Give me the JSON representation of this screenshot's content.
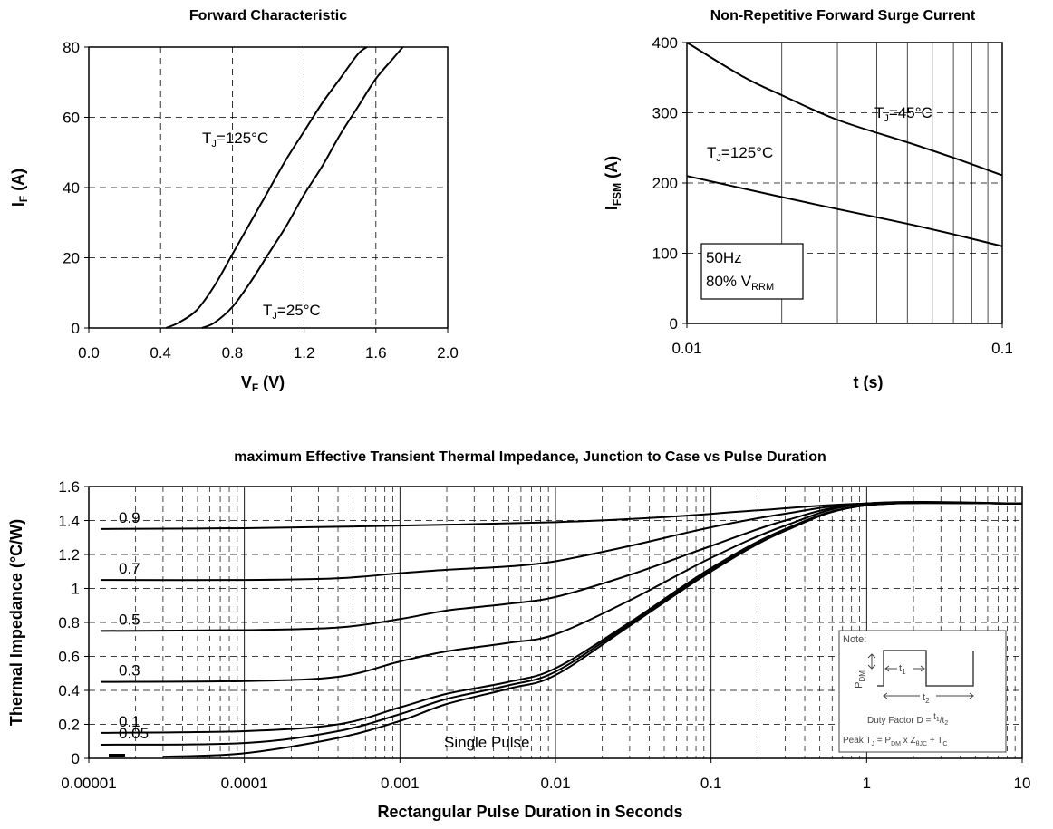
{
  "chart_data": [
    {
      "type": "line",
      "title": "Forward Characteristic",
      "xlabel": "V",
      "xlabel_sub": "F",
      "xlabel_unit": " (V)",
      "ylabel": "I",
      "ylabel_sub": "F",
      "ylabel_unit": " (A)",
      "xlim": [
        0,
        2.0
      ],
      "ylim": [
        0,
        80
      ],
      "xticks": [
        0,
        0.4,
        0.8,
        1.2,
        1.6,
        2.0
      ],
      "xtick_labels": [
        "0.0",
        "0.4",
        "0.8",
        "1.2",
        "1.6",
        "2.0"
      ],
      "yticks": [
        0,
        20,
        40,
        60,
        80
      ],
      "ytick_labels": [
        "0",
        "20",
        "40",
        "60",
        "80"
      ],
      "grid": true,
      "series": [
        {
          "x": [
            0.43,
            0.5,
            0.6,
            0.7,
            0.8,
            0.9,
            1.0,
            1.1,
            1.2,
            1.3,
            1.4,
            1.5,
            1.55
          ],
          "y": [
            0,
            1.5,
            5,
            12,
            21,
            30,
            39,
            48,
            56,
            64,
            71,
            78,
            80
          ]
        },
        {
          "x": [
            0.63,
            0.7,
            0.8,
            0.9,
            1.0,
            1.1,
            1.2,
            1.3,
            1.4,
            1.5,
            1.6,
            1.7,
            1.75
          ],
          "y": [
            0,
            1.5,
            6,
            13,
            21,
            29,
            38,
            46,
            55,
            63,
            71,
            77,
            80
          ]
        }
      ],
      "annotations": [
        {
          "base": "T",
          "sub": "J",
          "rest": "=125°C",
          "x": 0.83,
          "y": 54
        },
        {
          "base": "T",
          "sub": "J",
          "rest": "=25°C",
          "x": 1.0,
          "y": 5
        }
      ]
    },
    {
      "type": "line",
      "title": "Non-Repetitive Forward Surge Current",
      "xlabel": "t (s)",
      "ylabel": "I",
      "ylabel_sub": "FSM",
      "ylabel_unit": " (A)",
      "xscale": "log",
      "xlim": [
        0.01,
        0.1
      ],
      "ylim": [
        0,
        400
      ],
      "xticks": [
        0.01,
        0.1
      ],
      "xtick_labels": [
        "0.01",
        "0.1"
      ],
      "yticks": [
        0,
        100,
        200,
        300,
        400
      ],
      "ytick_labels": [
        "0",
        "100",
        "200",
        "300",
        "400"
      ],
      "grid": true,
      "series": [
        {
          "x": [
            0.01,
            0.015,
            0.02,
            0.03,
            0.05,
            0.07,
            0.1
          ],
          "y": [
            400,
            352,
            325,
            290,
            258,
            236,
            211
          ]
        },
        {
          "x": [
            0.01,
            0.02,
            0.03,
            0.05,
            0.07,
            0.1
          ],
          "y": [
            210,
            180,
            163,
            142,
            127,
            110
          ]
        }
      ],
      "annotations": [
        {
          "base": "T",
          "sub": "J",
          "rest": "=45°C",
          "x": 0.036,
          "y": 300
        },
        {
          "base": "T",
          "sub": "J",
          "rest": "=125°C",
          "x": 0.0105,
          "y": 237
        }
      ],
      "box": {
        "line1": "50Hz",
        "line2_base": "80% V",
        "line2_sub": "RRM"
      }
    },
    {
      "type": "line",
      "title": "maximum Effective Transient Thermal Impedance, Junction to Case vs Pulse Duration",
      "xlabel": "Rectangular Pulse Duration in Seconds",
      "ylabel": "Thermal Impedance (°C/W)",
      "xscale": "log",
      "xlim": [
        1e-05,
        10
      ],
      "ylim": [
        0,
        1.6
      ],
      "xticks": [
        1e-05,
        0.0001,
        0.001,
        0.01,
        0.1,
        1,
        10
      ],
      "xtick_labels": [
        "0.00001",
        "0.0001",
        "0.001",
        "0.01",
        "0.1",
        "1",
        "10"
      ],
      "yticks": [
        0,
        0.2,
        0.4,
        0.6,
        0.8,
        1,
        1.2,
        1.4,
        1.6
      ],
      "ytick_labels": [
        "0",
        "0.2",
        "0.4",
        "0.6",
        "0.8",
        "1",
        "1.2",
        "1.4",
        "1.6"
      ],
      "grid": true,
      "series": [
        {
          "name": "0.9",
          "x": [
            1.2e-05,
            0.0001,
            0.001,
            0.01,
            0.05,
            0.2,
            1,
            10
          ],
          "y": [
            1.35,
            1.355,
            1.37,
            1.39,
            1.42,
            1.46,
            1.5,
            1.5
          ]
        },
        {
          "name": "0.7",
          "x": [
            1.2e-05,
            0.0001,
            0.0004,
            0.001,
            0.002,
            0.005,
            0.01,
            0.03,
            0.1,
            0.3,
            1,
            10
          ],
          "y": [
            1.05,
            1.05,
            1.06,
            1.09,
            1.11,
            1.13,
            1.16,
            1.25,
            1.36,
            1.44,
            1.5,
            1.5
          ]
        },
        {
          "name": "0.5",
          "x": [
            1.2e-05,
            0.0001,
            0.0004,
            0.001,
            0.002,
            0.005,
            0.01,
            0.03,
            0.1,
            0.3,
            1,
            10
          ],
          "y": [
            0.75,
            0.755,
            0.77,
            0.82,
            0.87,
            0.91,
            0.95,
            1.08,
            1.25,
            1.4,
            1.5,
            1.5
          ]
        },
        {
          "name": "0.3",
          "x": [
            1.2e-05,
            0.0001,
            0.0004,
            0.001,
            0.002,
            0.005,
            0.01,
            0.03,
            0.1,
            0.3,
            1,
            10
          ],
          "y": [
            0.45,
            0.455,
            0.48,
            0.57,
            0.63,
            0.68,
            0.73,
            0.93,
            1.18,
            1.37,
            1.5,
            1.5
          ]
        },
        {
          "name": "0.1",
          "x": [
            1.2e-05,
            0.0001,
            0.0004,
            0.001,
            0.002,
            0.005,
            0.01,
            0.03,
            0.1,
            0.3,
            1,
            10
          ],
          "y": [
            0.15,
            0.16,
            0.2,
            0.3,
            0.38,
            0.45,
            0.53,
            0.8,
            1.12,
            1.35,
            1.49,
            1.5
          ]
        },
        {
          "name": "0.05",
          "x": [
            1.2e-05,
            0.0001,
            0.0004,
            0.001,
            0.002,
            0.005,
            0.01,
            0.03,
            0.1,
            0.3,
            1,
            10
          ],
          "y": [
            0.08,
            0.09,
            0.16,
            0.26,
            0.35,
            0.43,
            0.51,
            0.79,
            1.11,
            1.34,
            1.49,
            1.5
          ]
        },
        {
          "name": "Single Pulse",
          "x": [
            3e-05,
            0.0001,
            0.0004,
            0.001,
            0.002,
            0.005,
            0.01,
            0.03,
            0.1,
            0.3,
            1,
            10
          ],
          "y": [
            0.01,
            0.03,
            0.12,
            0.22,
            0.32,
            0.41,
            0.49,
            0.78,
            1.1,
            1.34,
            1.49,
            1.5
          ]
        }
      ],
      "series_labels": [
        "0.9",
        "0.7",
        "0.5",
        "0.3",
        "0.1",
        "0.05"
      ],
      "single_pulse_label": "Single Pulse",
      "note": {
        "heading": "Note:",
        "pdm_base": "P",
        "pdm_sub": "DM",
        "t1_base": "t",
        "t1_sub": "1",
        "t2_base": "t",
        "t2_sub": "2",
        "duty_text": "Duty Factor  D = ",
        "duty_num_base": "t",
        "duty_num_sub": "1",
        "duty_den_base": "t",
        "duty_den_sub": "2",
        "peak_base": "Peak T",
        "peak_sub1": "J",
        "peak_mid1": " = P",
        "peak_sub2": "DM",
        "peak_mid2": " x Z",
        "peak_sub3": "θJC",
        "peak_mid3": " + T",
        "peak_sub4": "C"
      }
    }
  ]
}
